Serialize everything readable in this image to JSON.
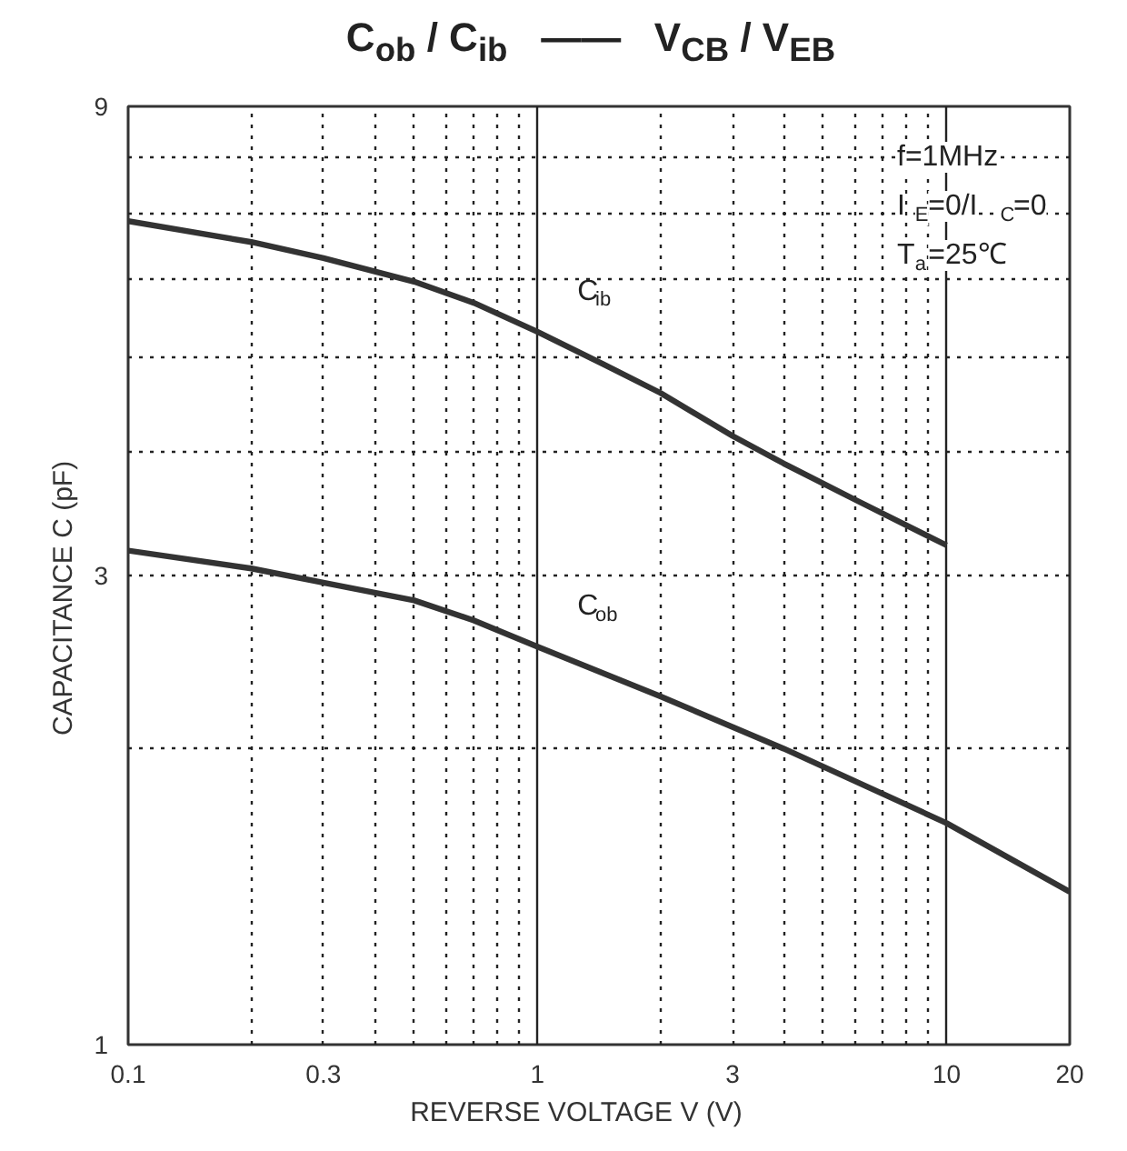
{
  "chart_data": {
    "type": "line",
    "title": "C$_{ob}$ / C$_{ib}$   ——   V$_{CB}$ / V$_{EB}$",
    "xlabel": "REVERSE VOLTAGE    V    (V)",
    "ylabel": "CAPACITANCE    C    (pF)",
    "log": "xy",
    "xlim": [
      0.1,
      20
    ],
    "ylim": [
      1,
      9
    ],
    "xticks": [
      0.1,
      0.3,
      1,
      3,
      10,
      20
    ],
    "yticks": [
      1,
      3,
      9
    ],
    "grid": true,
    "series": [
      {
        "name": "C$_{ib}$",
        "color": "#333333",
        "x": [
          0.1,
          0.2,
          0.3,
          0.5,
          0.7,
          1,
          1.45,
          2,
          3,
          4,
          6,
          10
        ],
        "values": [
          6.88,
          6.55,
          6.31,
          5.97,
          5.68,
          5.31,
          4.92,
          4.6,
          4.16,
          3.9,
          3.58,
          3.22
        ]
      },
      {
        "name": "C$_{ob}$",
        "color": "#333333",
        "x": [
          0.1,
          0.2,
          0.3,
          0.5,
          0.7,
          1,
          2,
          4,
          10,
          20
        ],
        "values": [
          3.18,
          3.05,
          2.95,
          2.83,
          2.7,
          2.54,
          2.26,
          2.0,
          1.68,
          1.43
        ]
      }
    ],
    "annotations": [
      "f=1MHz",
      "I$_{E}$=0/I$_{C}$=0",
      "T$_{a}$=25℃"
    ]
  }
}
